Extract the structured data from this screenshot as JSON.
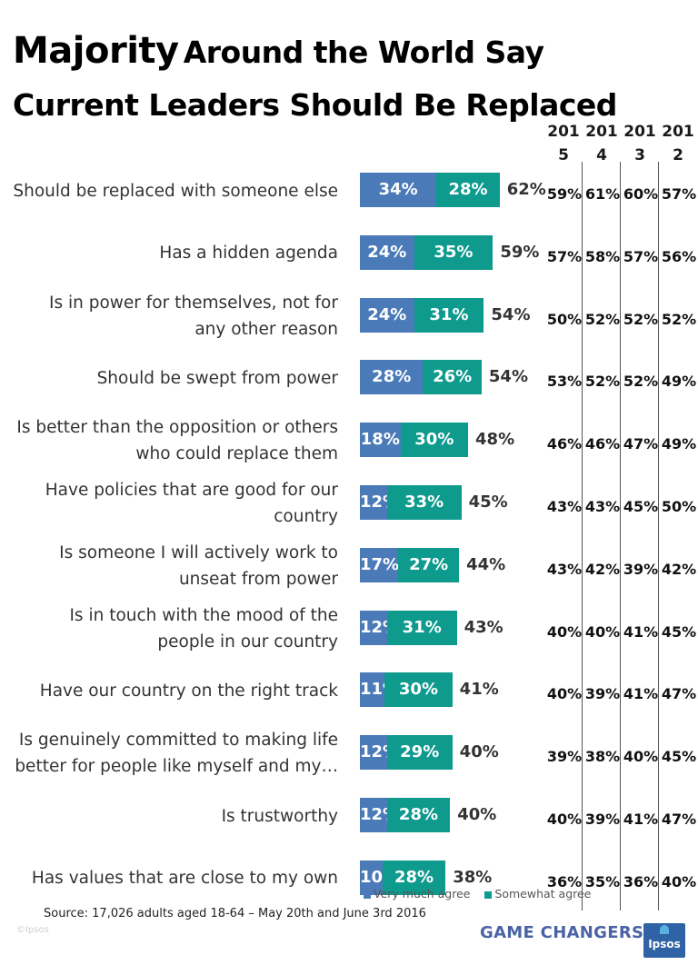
{
  "title": {
    "big": "Majority",
    "rest": "Around the World Say",
    "line2": "Current Leaders Should Be Replaced"
  },
  "year_headers": [
    "201\n5",
    "201\n4",
    "201\n3",
    "201\n2"
  ],
  "legend": {
    "very": "Very much agree",
    "somewhat": "Somewhat agree"
  },
  "source": "Source: 17,026 adults aged 18-64  – May 20th and June 3rd 2016",
  "copyright": "©Ipsos",
  "brand": "GAME CHANGERS",
  "logo": "Ipsos",
  "colors": {
    "very_much": "#4a7ab8",
    "somewhat": "#0f9a8e"
  },
  "chart_data": {
    "type": "bar",
    "orientation": "horizontal",
    "stacked": true,
    "categories": [
      "Should be replaced with someone else",
      "Has a hidden agenda",
      "Is in power for themselves, not for any other reason",
      "Should be swept from power",
      "Is better than the opposition or others who could replace them",
      "Have policies that are good for our country",
      "Is someone I will actively work to unseat from power",
      "Is in touch with the mood of the people in our country",
      "Have our country on the right track",
      "Is genuinely committed to making life better for people like myself and my…",
      "Is trustworthy",
      "Has values that are close to my own"
    ],
    "label_lines": [
      [
        "Should be replaced with someone else"
      ],
      [
        "Has a hidden agenda"
      ],
      [
        "Is in power for themselves, not for",
        "any other reason"
      ],
      [
        "Should be swept from power"
      ],
      [
        "Is better than the opposition or others",
        "who could replace them"
      ],
      [
        "Have policies that are good for our",
        "country"
      ],
      [
        "Is someone I will actively work to",
        "unseat from power"
      ],
      [
        "Is in touch with the mood of the",
        "people in our country"
      ],
      [
        "Have our country on the right track"
      ],
      [
        "Is genuinely committed to making life",
        "better for people like myself and my…"
      ],
      [
        "Is trustworthy"
      ],
      [
        "Has values that are close to my own"
      ]
    ],
    "series": [
      {
        "name": "Very much agree",
        "values": [
          34,
          24,
          24,
          28,
          18,
          12,
          17,
          12,
          11,
          12,
          12,
          10
        ]
      },
      {
        "name": "Somewhat agree",
        "values": [
          28,
          35,
          31,
          26,
          30,
          33,
          27,
          31,
          30,
          29,
          28,
          28
        ]
      }
    ],
    "totals": [
      62,
      59,
      54,
      54,
      48,
      45,
      44,
      43,
      41,
      40,
      40,
      38
    ],
    "previous_years": {
      "years": [
        "2015",
        "2014",
        "2013",
        "2012"
      ],
      "values": [
        [
          59,
          61,
          60,
          57
        ],
        [
          57,
          58,
          57,
          56
        ],
        [
          50,
          52,
          52,
          52
        ],
        [
          53,
          52,
          52,
          49
        ],
        [
          46,
          46,
          47,
          49
        ],
        [
          43,
          43,
          45,
          50
        ],
        [
          43,
          42,
          39,
          42
        ],
        [
          40,
          40,
          41,
          45
        ],
        [
          40,
          39,
          41,
          47
        ],
        [
          39,
          38,
          40,
          45
        ],
        [
          40,
          39,
          41,
          47
        ],
        [
          36,
          35,
          36,
          40
        ]
      ]
    },
    "value_suffix": "%",
    "xlim": [
      0,
      100
    ]
  }
}
